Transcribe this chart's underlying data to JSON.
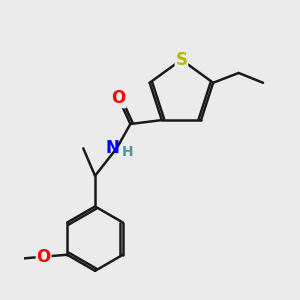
{
  "background_color": "#ebebeb",
  "atom_colors": {
    "S": "#b8b800",
    "O": "#ff0000",
    "N": "#0000ff",
    "H": "#4a9a9a",
    "C": "#000000"
  },
  "bond_color": "#1a1a1a",
  "bond_width": 1.8,
  "font_size_atoms": 12,
  "font_size_small": 10
}
